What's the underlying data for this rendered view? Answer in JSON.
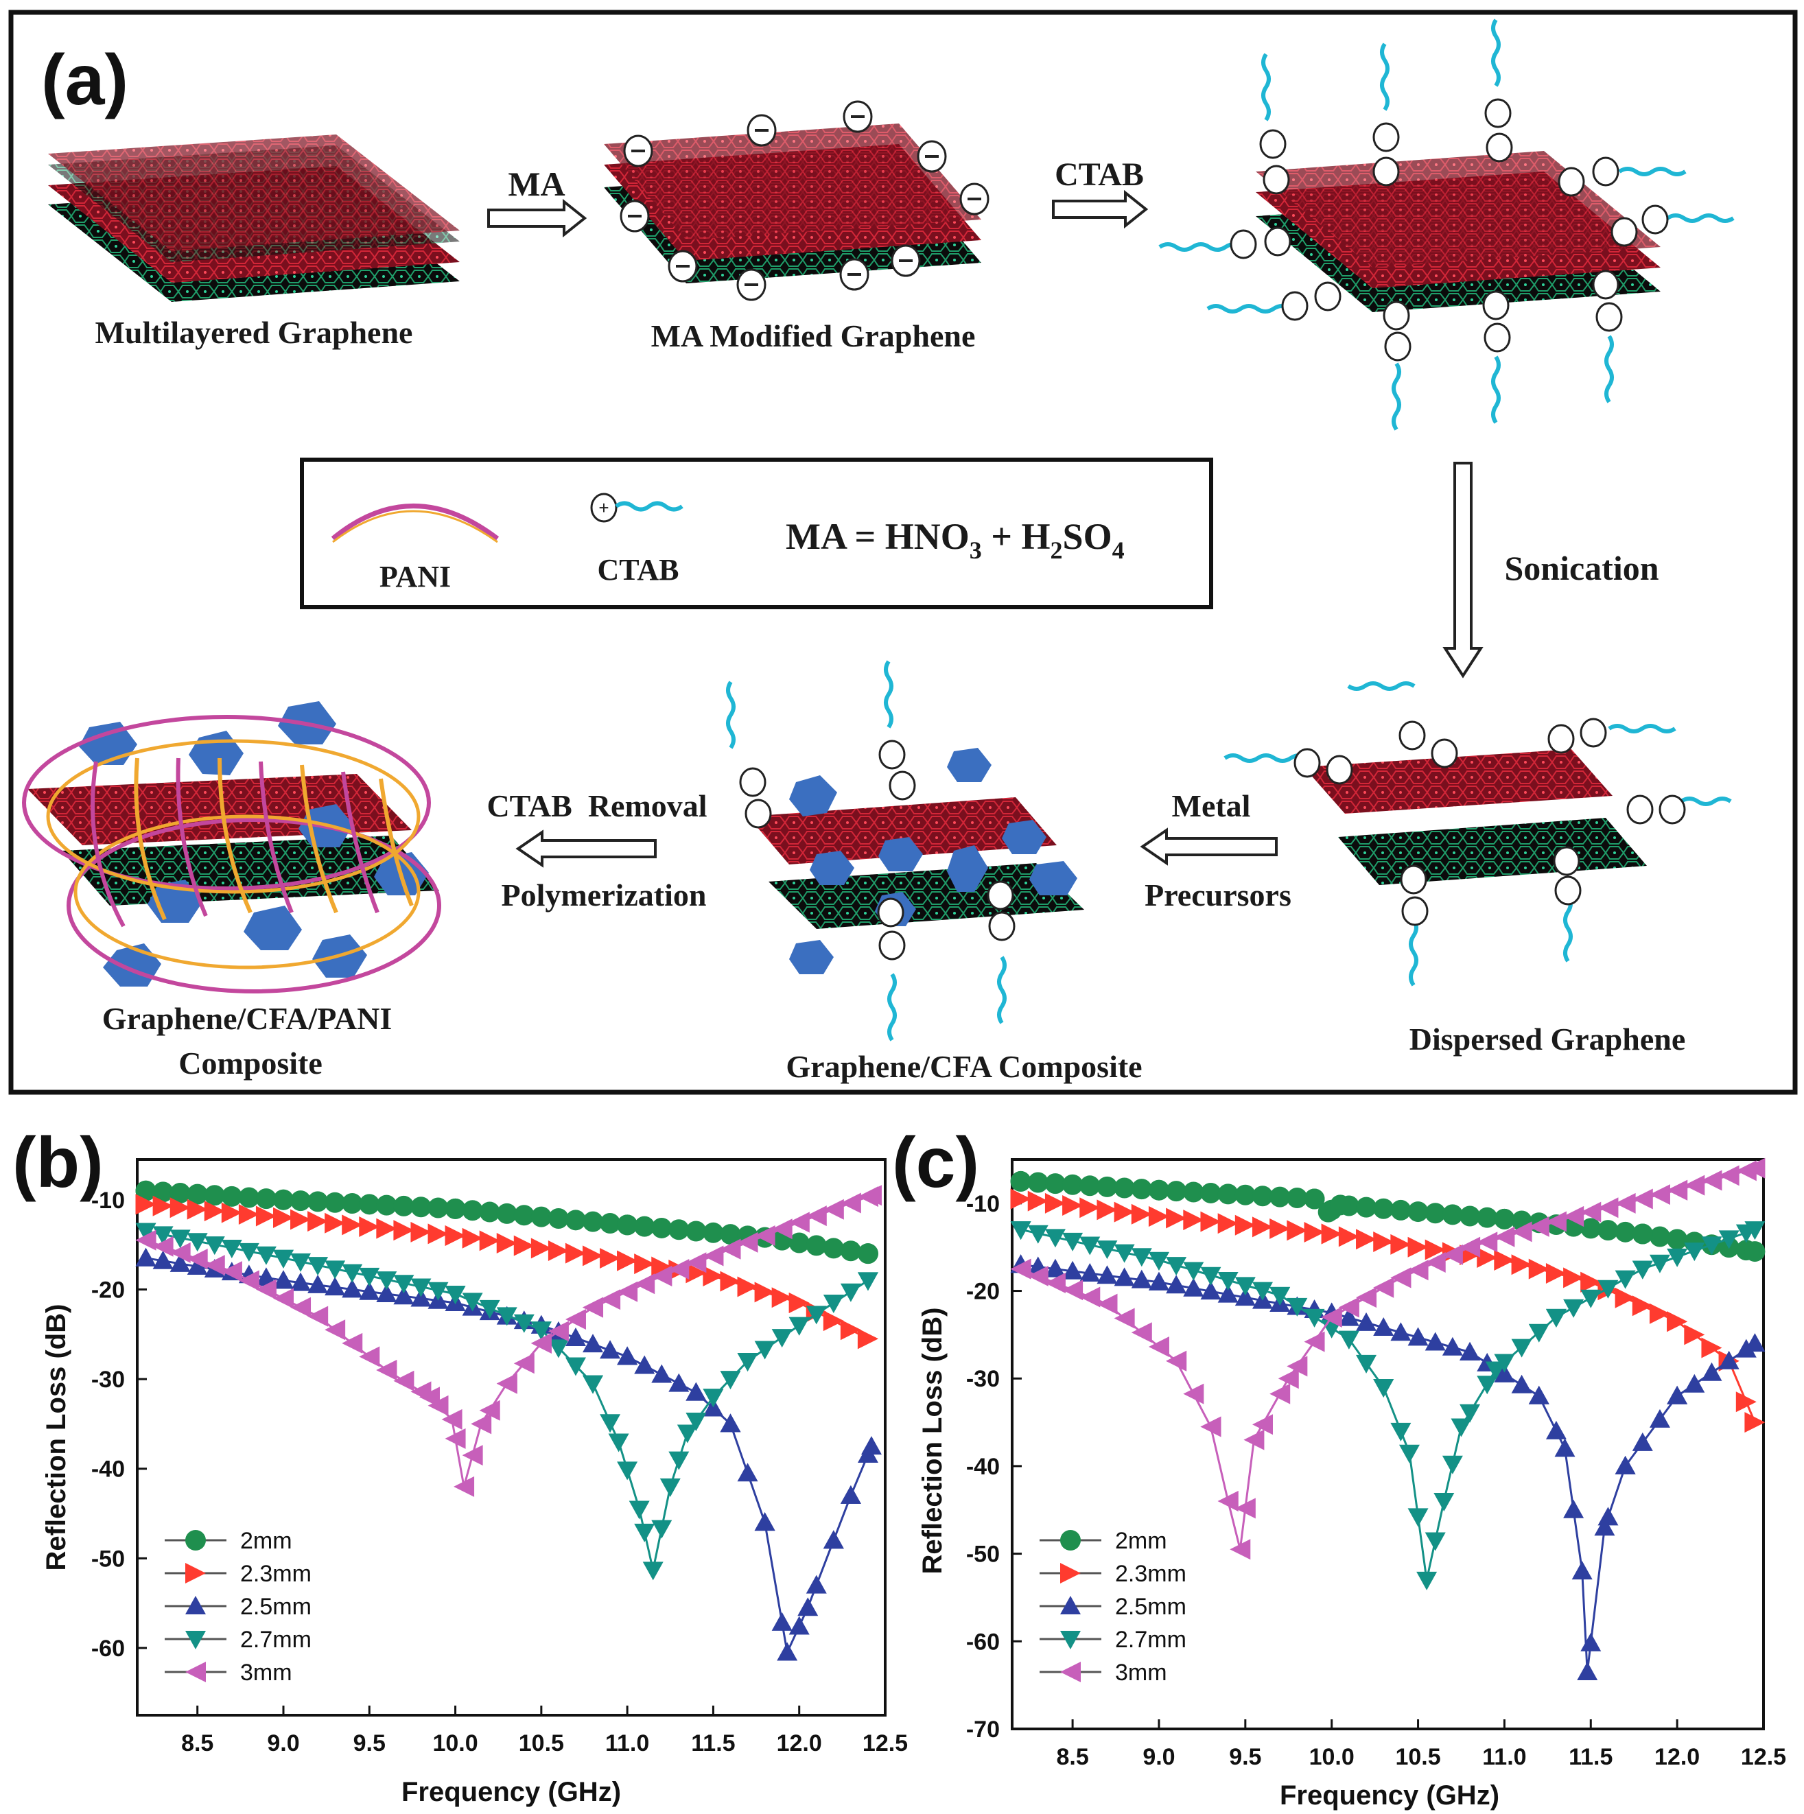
{
  "scheme": {
    "panel_label": "(a)",
    "step1_label": "Multilayered Graphene",
    "arrow1_label": "MA",
    "step2_label": "MA Modified Graphene",
    "arrow2_label": "CTAB",
    "arrow3_label": "Sonication",
    "step4_label": "Dispersed Graphene",
    "arrow4_line1": "Metal",
    "arrow4_line2": "Precursors",
    "step5_label": "Graphene/CFA Composite",
    "arrow5_line1": "CTAB  Removal",
    "arrow5_line2": "Polymerization",
    "step6_line1": "Graphene/CFA/PANI",
    "step6_line2": "Composite",
    "legend_pani": "PANI",
    "legend_ctab": "CTAB",
    "legend_ma_prefix": "MA = HNO",
    "legend_ma_sub1": "3",
    "legend_ma_mid": " + H",
    "legend_ma_sub2": "2",
    "legend_ma_so": "SO",
    "legend_ma_sub3": "4",
    "colors": {
      "sheet_red": "#7a0f1e",
      "sheet_black": "#0d0d0d",
      "tail": "#1fb6d4",
      "cfa": "#3b6fc0",
      "pani_pink": "#c3479d",
      "pani_orange": "#f0a830"
    }
  },
  "chart_data": [
    {
      "panel_label": "(b)",
      "type": "line",
      "xlabel": "Frequency (GHz)",
      "ylabel": "Reflection Loss (dB)",
      "xlim": [
        8.15,
        12.5
      ],
      "ylim": [
        -67.5,
        -5.5
      ],
      "xticks": [
        "8.5",
        "9.0",
        "9.5",
        "10.0",
        "10.5",
        "11.0",
        "11.5",
        "12.0",
        "12.5"
      ],
      "yticks": [
        "-10",
        "-20",
        "-30",
        "-40",
        "-50",
        "-60"
      ],
      "legend_position": "bottom-left",
      "series": [
        {
          "name": "2mm",
          "color": "#1f8f4e",
          "marker": "circle",
          "points": [
            [
              8.2,
              -9
            ],
            [
              9.0,
              -10
            ],
            [
              10.0,
              -11
            ],
            [
              11.0,
              -12.8
            ],
            [
              11.8,
              -14.2
            ],
            [
              12.4,
              -16
            ]
          ]
        },
        {
          "name": "2.3mm",
          "color": "#ff3b2f",
          "marker": "right",
          "points": [
            [
              8.2,
              -10.5
            ],
            [
              9.0,
              -12
            ],
            [
              10.0,
              -14
            ],
            [
              11.0,
              -16.8
            ],
            [
              11.5,
              -18.5
            ],
            [
              12.0,
              -21.5
            ],
            [
              12.4,
              -25.5
            ]
          ]
        },
        {
          "name": "2.5mm",
          "color": "#2e3fa0",
          "marker": "up",
          "points": [
            [
              8.2,
              -16.5
            ],
            [
              9.0,
              -19
            ],
            [
              10.0,
              -21.5
            ],
            [
              10.5,
              -24
            ],
            [
              11.0,
              -27.5
            ],
            [
              11.4,
              -31.5
            ],
            [
              11.6,
              -35
            ],
            [
              11.8,
              -46
            ],
            [
              11.93,
              -60.5
            ],
            [
              12.05,
              -55.5
            ],
            [
              12.2,
              -48
            ],
            [
              12.3,
              -43
            ],
            [
              12.42,
              -37.5
            ]
          ]
        },
        {
          "name": "2.7mm",
          "color": "#139186",
          "marker": "down",
          "points": [
            [
              8.2,
              -13.5
            ],
            [
              9.0,
              -16.5
            ],
            [
              10.0,
              -20.5
            ],
            [
              10.5,
              -24.5
            ],
            [
              10.8,
              -30.5
            ],
            [
              10.95,
              -37
            ],
            [
              11.07,
              -44.5
            ],
            [
              11.15,
              -51.3
            ],
            [
              11.25,
              -42
            ],
            [
              11.35,
              -36
            ],
            [
              11.5,
              -32
            ],
            [
              11.7,
              -28
            ],
            [
              12.0,
              -24
            ],
            [
              12.4,
              -19
            ]
          ]
        },
        {
          "name": "3mm",
          "color": "#c75fba",
          "marker": "left",
          "points": [
            [
              8.2,
              -14.5
            ],
            [
              8.7,
              -18
            ],
            [
              9.2,
              -23
            ],
            [
              9.6,
              -29
            ],
            [
              9.85,
              -32
            ],
            [
              9.98,
              -34.5
            ],
            [
              10.05,
              -42
            ],
            [
              10.15,
              -35
            ],
            [
              10.3,
              -30.5
            ],
            [
              10.5,
              -26
            ],
            [
              10.8,
              -22
            ],
            [
              11.2,
              -18.5
            ],
            [
              11.6,
              -15.5
            ],
            [
              12.0,
              -12.5
            ],
            [
              12.42,
              -9.5
            ]
          ]
        }
      ]
    },
    {
      "panel_label": "(c)",
      "type": "line",
      "xlabel": "Frequency (GHz)",
      "ylabel": "Reflection Loss (dB)",
      "xlim": [
        8.15,
        12.5
      ],
      "ylim": [
        -70,
        -5
      ],
      "xticks": [
        "8.5",
        "9.0",
        "9.5",
        "10.0",
        "10.5",
        "11.0",
        "11.5",
        "12.0",
        "12.5"
      ],
      "yticks": [
        "-10",
        "-20",
        "-30",
        "-40",
        "-50",
        "-60",
        "-70"
      ],
      "legend_position": "bottom-left",
      "series": [
        {
          "name": "2mm",
          "color": "#1f8f4e",
          "marker": "circle",
          "points": [
            [
              8.2,
              -7.5
            ],
            [
              9.0,
              -8.5
            ],
            [
              9.9,
              -9.5
            ],
            [
              9.98,
              -11
            ],
            [
              10.05,
              -10.2
            ],
            [
              11.0,
              -11.8
            ],
            [
              11.8,
              -13.5
            ],
            [
              12.45,
              -15.5
            ]
          ]
        },
        {
          "name": "2.3mm",
          "color": "#ff3b2f",
          "marker": "right",
          "points": [
            [
              8.2,
              -9.5
            ],
            [
              9.0,
              -11.5
            ],
            [
              10.0,
              -13.5
            ],
            [
              11.0,
              -16.5
            ],
            [
              11.5,
              -19
            ],
            [
              12.0,
              -23.5
            ],
            [
              12.3,
              -28
            ],
            [
              12.45,
              -35
            ]
          ]
        },
        {
          "name": "2.5mm",
          "color": "#2e3fa0",
          "marker": "up",
          "points": [
            [
              8.2,
              -17
            ],
            [
              9.0,
              -19
            ],
            [
              10.0,
              -22.5
            ],
            [
              10.8,
              -27
            ],
            [
              11.2,
              -32
            ],
            [
              11.35,
              -38
            ],
            [
              11.45,
              -52
            ],
            [
              11.48,
              -63.5
            ],
            [
              11.58,
              -47
            ],
            [
              11.7,
              -40
            ],
            [
              12.0,
              -32
            ],
            [
              12.45,
              -26
            ]
          ]
        },
        {
          "name": "2.7mm",
          "color": "#139186",
          "marker": "down",
          "points": [
            [
              8.2,
              -13
            ],
            [
              9.0,
              -16.5
            ],
            [
              9.7,
              -20.5
            ],
            [
              10.1,
              -25.5
            ],
            [
              10.3,
              -31
            ],
            [
              10.45,
              -38.5
            ],
            [
              10.55,
              -53
            ],
            [
              10.65,
              -44
            ],
            [
              10.75,
              -35.5
            ],
            [
              10.95,
              -29
            ],
            [
              11.3,
              -23
            ],
            [
              11.8,
              -17.5
            ],
            [
              12.45,
              -13
            ]
          ]
        },
        {
          "name": "3mm",
          "color": "#c75fba",
          "marker": "left",
          "points": [
            [
              8.2,
              -17.5
            ],
            [
              8.7,
              -21.5
            ],
            [
              9.1,
              -28
            ],
            [
              9.3,
              -35.5
            ],
            [
              9.4,
              -44
            ],
            [
              9.47,
              -49.5
            ],
            [
              9.55,
              -37
            ],
            [
              9.75,
              -30
            ],
            [
              10.0,
              -23
            ],
            [
              10.4,
              -18.5
            ],
            [
              10.8,
              -15
            ],
            [
              11.4,
              -11.5
            ],
            [
              12.0,
              -8.5
            ],
            [
              12.45,
              -6
            ]
          ]
        }
      ]
    }
  ]
}
